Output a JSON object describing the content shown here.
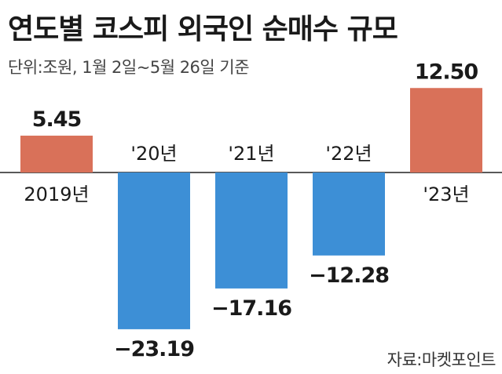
{
  "title": "연도별 코스피 외국인 순매수 규모",
  "subtitle": "단위:조원, 1월 2일~5월 26일 기준",
  "source": "자료:마켓포인트",
  "colors": {
    "positive": "#d97159",
    "negative": "#3d8fd6",
    "baseline": "#222222",
    "text": "#1a1a1a"
  },
  "chart_data": {
    "type": "bar",
    "categories": [
      "2019년",
      "'20년",
      "'21년",
      "'22년",
      "'23년"
    ],
    "values": [
      5.45,
      -23.19,
      -17.16,
      -12.28,
      12.5
    ],
    "value_labels": [
      "5.45",
      "−23.19",
      "−17.16",
      "−12.28",
      "12.50"
    ],
    "title": "연도별 코스피 외국인 순매수 규모",
    "ylabel": "",
    "xlabel": "",
    "ylim": [
      -23.19,
      12.5
    ],
    "grid": false,
    "legend": "none"
  }
}
